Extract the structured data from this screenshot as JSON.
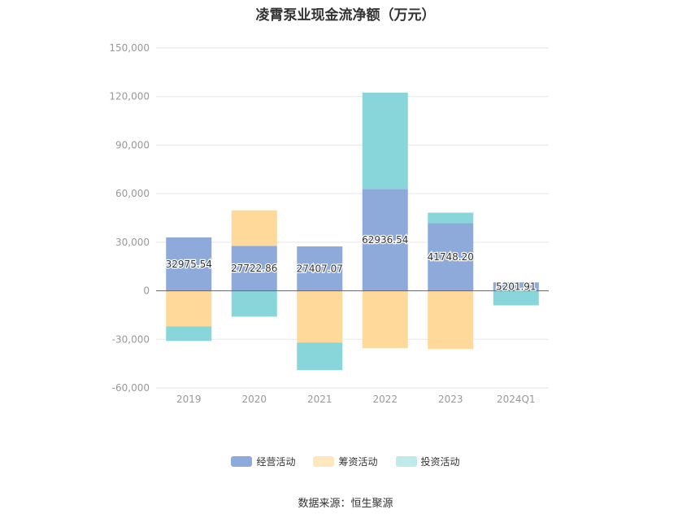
{
  "chart_data": {
    "type": "bar",
    "stacked": true,
    "title": "凌霄泵业现金流净额（万元）",
    "categories": [
      "2019",
      "2020",
      "2021",
      "2022",
      "2023",
      "2024Q1"
    ],
    "series": [
      {
        "name": "经营活动",
        "color": "#8eaadb",
        "values": [
          32975.54,
          27722.86,
          27407.07,
          62936.54,
          41748.2,
          5201.91
        ]
      },
      {
        "name": "筹资活动",
        "color": "#fed999",
        "values": [
          -22000,
          22000,
          -32000,
          -35500,
          -36000,
          0
        ]
      },
      {
        "name": "投资活动",
        "color": "#88d6d9",
        "values": [
          -9000,
          -16000,
          -17000,
          59500,
          6500,
          -9000
        ]
      }
    ],
    "data_labels": [
      "32975.54",
      "27722.86",
      "27407.07",
      "62936.54",
      "41748.20",
      "5201.91"
    ],
    "ylim": [
      -60000,
      150000
    ],
    "yticks": [
      -60000,
      -30000,
      0,
      30000,
      60000,
      90000,
      120000,
      150000
    ],
    "ytick_labels": [
      "-60,000",
      "-30,000",
      "0",
      "30,000",
      "60,000",
      "90,000",
      "120,000",
      "150,000"
    ],
    "grid": true,
    "legend_position": "bottom"
  },
  "source": "数据来源：恒生聚源"
}
